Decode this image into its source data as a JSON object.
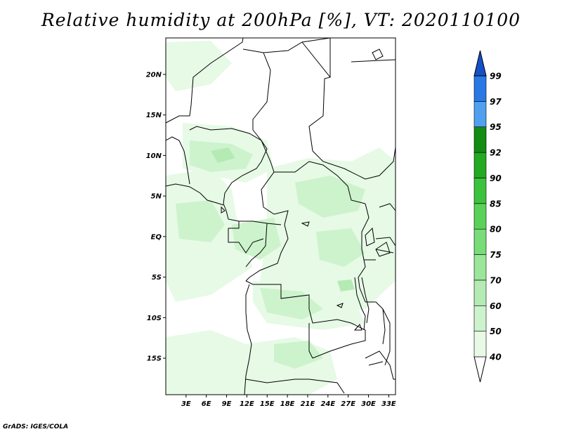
{
  "title": "Relative humidity at 200hPa [%], VT: 2020110100",
  "credit": "GrADS: IGES/COLA",
  "map": {
    "lat_ticks": [
      "20N",
      "15N",
      "10N",
      "5N",
      "EQ",
      "5S",
      "10S",
      "15S"
    ],
    "lat_values": [
      20,
      15,
      10,
      5,
      0,
      -5,
      -10,
      -15
    ],
    "lon_ticks": [
      "3E",
      "6E",
      "9E",
      "12E",
      "15E",
      "18E",
      "21E",
      "24E",
      "27E",
      "30E",
      "33E"
    ],
    "lon_values": [
      3,
      6,
      9,
      12,
      15,
      18,
      21,
      24,
      27,
      30,
      33
    ],
    "lat_range": [
      -19.5,
      24.5
    ],
    "lon_range": [
      0,
      34
    ]
  },
  "colorbar": {
    "labels": [
      "40",
      "50",
      "60",
      "70",
      "75",
      "80",
      "85",
      "90",
      "92",
      "95",
      "97",
      "99"
    ],
    "colors": [
      "#ffffff",
      "#e6fae6",
      "#cdf3cd",
      "#b4ebb4",
      "#9be69b",
      "#78dc78",
      "#5ad25a",
      "#3cc33c",
      "#22aa22",
      "#128c12",
      "#4fa0f0",
      "#2878e6",
      "#1450c8"
    ]
  },
  "colors": {
    "land_outline": "#000000",
    "humid_light": "#e6fae6",
    "humid_mid": "#cdf3cd",
    "humid_high": "#b4ebb4"
  }
}
